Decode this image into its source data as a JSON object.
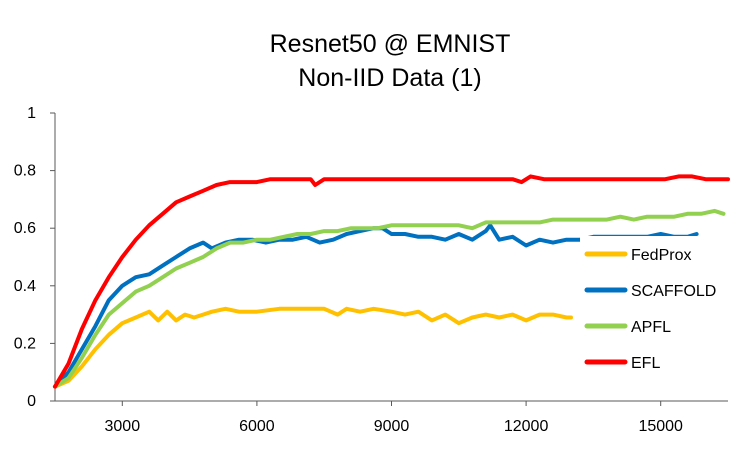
{
  "chart_data": {
    "type": "line",
    "title": [
      "Resnet50 @ EMNIST",
      "Non-IID Data (1)"
    ],
    "xlabel": "",
    "ylabel": "",
    "xlim": [
      1500,
      16500
    ],
    "ylim": [
      0,
      1
    ],
    "xticks": [
      3000,
      6000,
      9000,
      12000,
      15000
    ],
    "yticks": [
      0,
      0.2,
      0.4,
      0.6,
      0.8,
      1
    ],
    "ytick_labels": [
      "0",
      "0.2",
      "0.4",
      "0.6",
      "0.8",
      "1"
    ],
    "grid": false,
    "legend": "right",
    "series": [
      {
        "name": "FedProx",
        "color": "#FFC000",
        "x": [
          1500,
          1800,
          2100,
          2400,
          2700,
          3000,
          3300,
          3600,
          3800,
          4000,
          4200,
          4400,
          4600,
          4800,
          5000,
          5300,
          5600,
          6000,
          6500,
          7000,
          7500,
          7800,
          8000,
          8300,
          8600,
          9000,
          9300,
          9600,
          9900,
          10200,
          10500,
          10800,
          11100,
          11400,
          11700,
          12000,
          12300,
          12600,
          12900,
          13000
        ],
        "values": [
          0.05,
          0.07,
          0.12,
          0.18,
          0.23,
          0.27,
          0.29,
          0.31,
          0.28,
          0.31,
          0.28,
          0.3,
          0.29,
          0.3,
          0.31,
          0.32,
          0.31,
          0.31,
          0.32,
          0.32,
          0.32,
          0.3,
          0.32,
          0.31,
          0.32,
          0.31,
          0.3,
          0.31,
          0.28,
          0.3,
          0.27,
          0.29,
          0.3,
          0.29,
          0.3,
          0.28,
          0.3,
          0.3,
          0.29,
          0.29
        ]
      },
      {
        "name": "SCAFFOLD",
        "color": "#0070C0",
        "x": [
          1500,
          1800,
          2100,
          2400,
          2700,
          3000,
          3300,
          3600,
          3900,
          4200,
          4500,
          4800,
          5000,
          5300,
          5600,
          5900,
          6200,
          6500,
          6800,
          7100,
          7400,
          7700,
          8000,
          8300,
          8600,
          8800,
          9000,
          9300,
          9600,
          9900,
          10200,
          10500,
          10800,
          11100,
          11200,
          11400,
          11700,
          12000,
          12300,
          12600,
          12900,
          13200,
          13500,
          13800,
          14100,
          14400,
          14700,
          15000,
          15300,
          15600,
          15800
        ],
        "values": [
          0.05,
          0.1,
          0.18,
          0.26,
          0.35,
          0.4,
          0.43,
          0.44,
          0.47,
          0.5,
          0.53,
          0.55,
          0.53,
          0.55,
          0.56,
          0.56,
          0.55,
          0.56,
          0.56,
          0.57,
          0.55,
          0.56,
          0.58,
          0.59,
          0.6,
          0.6,
          0.58,
          0.58,
          0.57,
          0.57,
          0.56,
          0.58,
          0.56,
          0.59,
          0.61,
          0.56,
          0.57,
          0.54,
          0.56,
          0.55,
          0.56,
          0.56,
          0.57,
          0.57,
          0.57,
          0.57,
          0.57,
          0.58,
          0.57,
          0.57,
          0.58
        ]
      },
      {
        "name": "APFL",
        "color": "#92D050",
        "x": [
          1500,
          1800,
          2100,
          2400,
          2700,
          3000,
          3300,
          3600,
          3900,
          4200,
          4500,
          4800,
          5100,
          5400,
          5700,
          6000,
          6300,
          6600,
          6900,
          7200,
          7500,
          7800,
          8100,
          8400,
          8700,
          9000,
          9300,
          9600,
          9900,
          10200,
          10500,
          10800,
          11100,
          11400,
          11700,
          12000,
          12300,
          12600,
          12900,
          13200,
          13500,
          13800,
          14100,
          14400,
          14700,
          15000,
          15300,
          15600,
          15900,
          16200,
          16400
        ],
        "values": [
          0.05,
          0.08,
          0.15,
          0.23,
          0.3,
          0.34,
          0.38,
          0.4,
          0.43,
          0.46,
          0.48,
          0.5,
          0.53,
          0.55,
          0.55,
          0.56,
          0.56,
          0.57,
          0.58,
          0.58,
          0.59,
          0.59,
          0.6,
          0.6,
          0.6,
          0.61,
          0.61,
          0.61,
          0.61,
          0.61,
          0.61,
          0.6,
          0.62,
          0.62,
          0.62,
          0.62,
          0.62,
          0.63,
          0.63,
          0.63,
          0.63,
          0.63,
          0.64,
          0.63,
          0.64,
          0.64,
          0.64,
          0.65,
          0.65,
          0.66,
          0.65
        ]
      },
      {
        "name": "EFL",
        "color": "#FF0000",
        "x": [
          1500,
          1800,
          2100,
          2400,
          2700,
          3000,
          3300,
          3600,
          3900,
          4200,
          4500,
          4800,
          5100,
          5400,
          5700,
          6000,
          6300,
          6600,
          6900,
          7200,
          7300,
          7500,
          7800,
          8100,
          8400,
          8700,
          9000,
          9300,
          9600,
          9900,
          10200,
          10500,
          10800,
          11100,
          11400,
          11700,
          11900,
          12100,
          12400,
          12700,
          13000,
          13300,
          13600,
          13900,
          14200,
          14500,
          14800,
          15100,
          15400,
          15700,
          16000,
          16200,
          16500
        ],
        "values": [
          0.05,
          0.13,
          0.25,
          0.35,
          0.43,
          0.5,
          0.56,
          0.61,
          0.65,
          0.69,
          0.71,
          0.73,
          0.75,
          0.76,
          0.76,
          0.76,
          0.77,
          0.77,
          0.77,
          0.77,
          0.75,
          0.77,
          0.77,
          0.77,
          0.77,
          0.77,
          0.77,
          0.77,
          0.77,
          0.77,
          0.77,
          0.77,
          0.77,
          0.77,
          0.77,
          0.77,
          0.76,
          0.78,
          0.77,
          0.77,
          0.77,
          0.77,
          0.77,
          0.77,
          0.77,
          0.77,
          0.77,
          0.77,
          0.78,
          0.78,
          0.77,
          0.77,
          0.77
        ]
      }
    ]
  }
}
